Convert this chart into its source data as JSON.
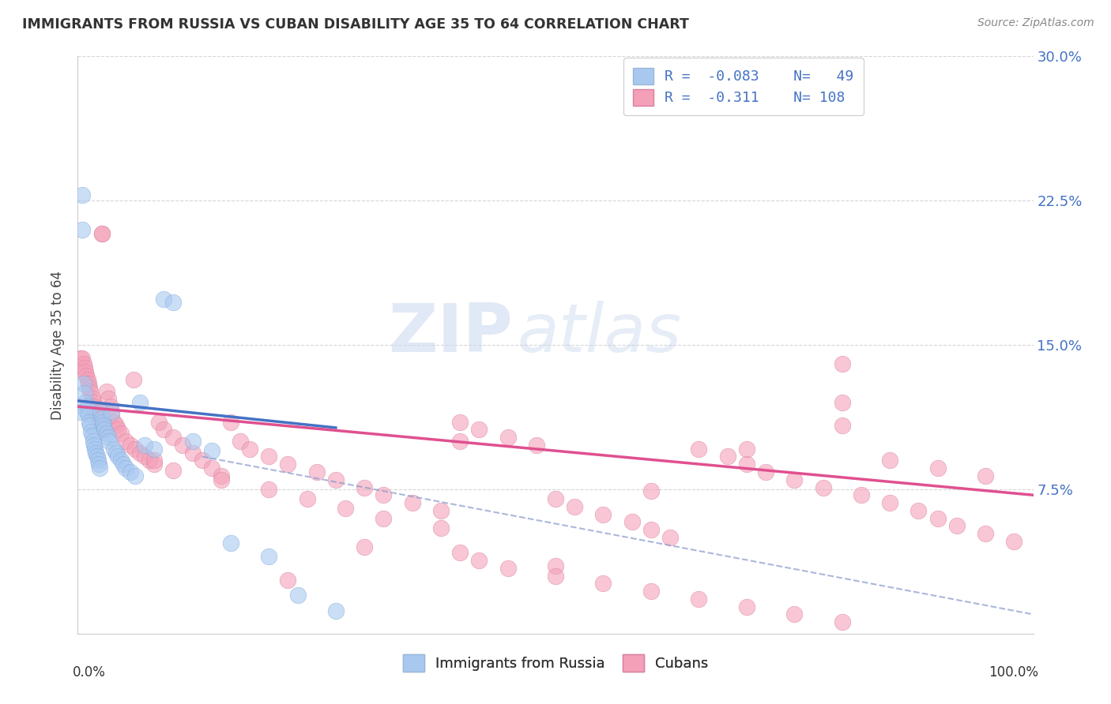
{
  "title": "IMMIGRANTS FROM RUSSIA VS CUBAN DISABILITY AGE 35 TO 64 CORRELATION CHART",
  "source": "Source: ZipAtlas.com",
  "ylabel": "Disability Age 35 to 64",
  "xlim": [
    0.0,
    1.0
  ],
  "ylim": [
    0.0,
    0.3
  ],
  "legend_R1": "-0.083",
  "legend_N1": "49",
  "legend_R2": "-0.311",
  "legend_N2": "108",
  "russia_color": "#a8c8f0",
  "russia_edge_color": "#80a8d8",
  "cuba_color": "#f4a0b8",
  "cuba_edge_color": "#d880a0",
  "russia_line_color": "#4472c4",
  "cuba_line_color": "#e05090",
  "dash_line_color": "#8899cc",
  "russia_line": [
    [
      0.0,
      0.121
    ],
    [
      0.27,
      0.107
    ]
  ],
  "cuba_line": [
    [
      0.0,
      0.118
    ],
    [
      1.0,
      0.072
    ]
  ],
  "dash_line": [
    [
      0.13,
      0.092
    ],
    [
      1.0,
      0.01
    ]
  ],
  "russia_x": [
    0.003,
    0.005,
    0.006,
    0.007,
    0.008,
    0.009,
    0.01,
    0.011,
    0.012,
    0.013,
    0.014,
    0.015,
    0.016,
    0.017,
    0.018,
    0.019,
    0.02,
    0.021,
    0.022,
    0.023,
    0.024,
    0.025,
    0.026,
    0.027,
    0.028,
    0.03,
    0.032,
    0.033,
    0.035,
    0.038,
    0.04,
    0.042,
    0.045,
    0.048,
    0.05,
    0.055,
    0.06,
    0.065,
    0.07,
    0.08,
    0.09,
    0.1,
    0.12,
    0.14,
    0.16,
    0.2,
    0.23,
    0.27,
    0.005
  ],
  "russia_y": [
    0.115,
    0.228,
    0.13,
    0.125,
    0.12,
    0.116,
    0.118,
    0.114,
    0.11,
    0.108,
    0.105,
    0.103,
    0.1,
    0.098,
    0.096,
    0.094,
    0.092,
    0.09,
    0.088,
    0.086,
    0.115,
    0.112,
    0.11,
    0.108,
    0.106,
    0.104,
    0.102,
    0.1,
    0.115,
    0.096,
    0.094,
    0.092,
    0.09,
    0.088,
    0.086,
    0.084,
    0.082,
    0.12,
    0.098,
    0.096,
    0.174,
    0.172,
    0.1,
    0.095,
    0.047,
    0.04,
    0.02,
    0.012,
    0.21
  ],
  "cuba_x": [
    0.003,
    0.005,
    0.006,
    0.007,
    0.008,
    0.009,
    0.01,
    0.011,
    0.012,
    0.013,
    0.015,
    0.016,
    0.017,
    0.018,
    0.02,
    0.022,
    0.025,
    0.026,
    0.028,
    0.03,
    0.032,
    0.034,
    0.035,
    0.038,
    0.04,
    0.042,
    0.045,
    0.05,
    0.055,
    0.058,
    0.06,
    0.065,
    0.07,
    0.075,
    0.08,
    0.085,
    0.09,
    0.1,
    0.11,
    0.12,
    0.13,
    0.14,
    0.15,
    0.16,
    0.17,
    0.18,
    0.2,
    0.22,
    0.25,
    0.27,
    0.3,
    0.32,
    0.35,
    0.38,
    0.4,
    0.42,
    0.45,
    0.48,
    0.5,
    0.52,
    0.55,
    0.58,
    0.6,
    0.62,
    0.65,
    0.68,
    0.7,
    0.72,
    0.75,
    0.78,
    0.8,
    0.82,
    0.85,
    0.88,
    0.9,
    0.92,
    0.95,
    0.98,
    0.025,
    0.3,
    0.5,
    0.22,
    0.4,
    0.42,
    0.45,
    0.5,
    0.55,
    0.6,
    0.65,
    0.7,
    0.75,
    0.8,
    0.85,
    0.9,
    0.95,
    0.7,
    0.8,
    0.8,
    0.6,
    0.4,
    0.38,
    0.32,
    0.28,
    0.24,
    0.2,
    0.15,
    0.1,
    0.08
  ],
  "cuba_y": [
    0.143,
    0.143,
    0.14,
    0.138,
    0.136,
    0.134,
    0.132,
    0.13,
    0.128,
    0.126,
    0.122,
    0.12,
    0.118,
    0.116,
    0.114,
    0.112,
    0.208,
    0.108,
    0.106,
    0.126,
    0.122,
    0.118,
    0.114,
    0.11,
    0.108,
    0.106,
    0.104,
    0.1,
    0.098,
    0.132,
    0.096,
    0.094,
    0.092,
    0.09,
    0.088,
    0.11,
    0.106,
    0.102,
    0.098,
    0.094,
    0.09,
    0.086,
    0.082,
    0.11,
    0.1,
    0.096,
    0.092,
    0.088,
    0.084,
    0.08,
    0.076,
    0.072,
    0.068,
    0.064,
    0.11,
    0.106,
    0.102,
    0.098,
    0.07,
    0.066,
    0.062,
    0.058,
    0.054,
    0.05,
    0.096,
    0.092,
    0.088,
    0.084,
    0.08,
    0.076,
    0.14,
    0.072,
    0.068,
    0.064,
    0.06,
    0.056,
    0.052,
    0.048,
    0.208,
    0.045,
    0.035,
    0.028,
    0.042,
    0.038,
    0.034,
    0.03,
    0.026,
    0.022,
    0.018,
    0.014,
    0.01,
    0.006,
    0.09,
    0.086,
    0.082,
    0.096,
    0.12,
    0.108,
    0.074,
    0.1,
    0.055,
    0.06,
    0.065,
    0.07,
    0.075,
    0.08,
    0.085,
    0.09
  ],
  "watermark_zip": "ZIP",
  "watermark_atlas": "atlas",
  "background_color": "#ffffff",
  "grid_color": "#cccccc"
}
